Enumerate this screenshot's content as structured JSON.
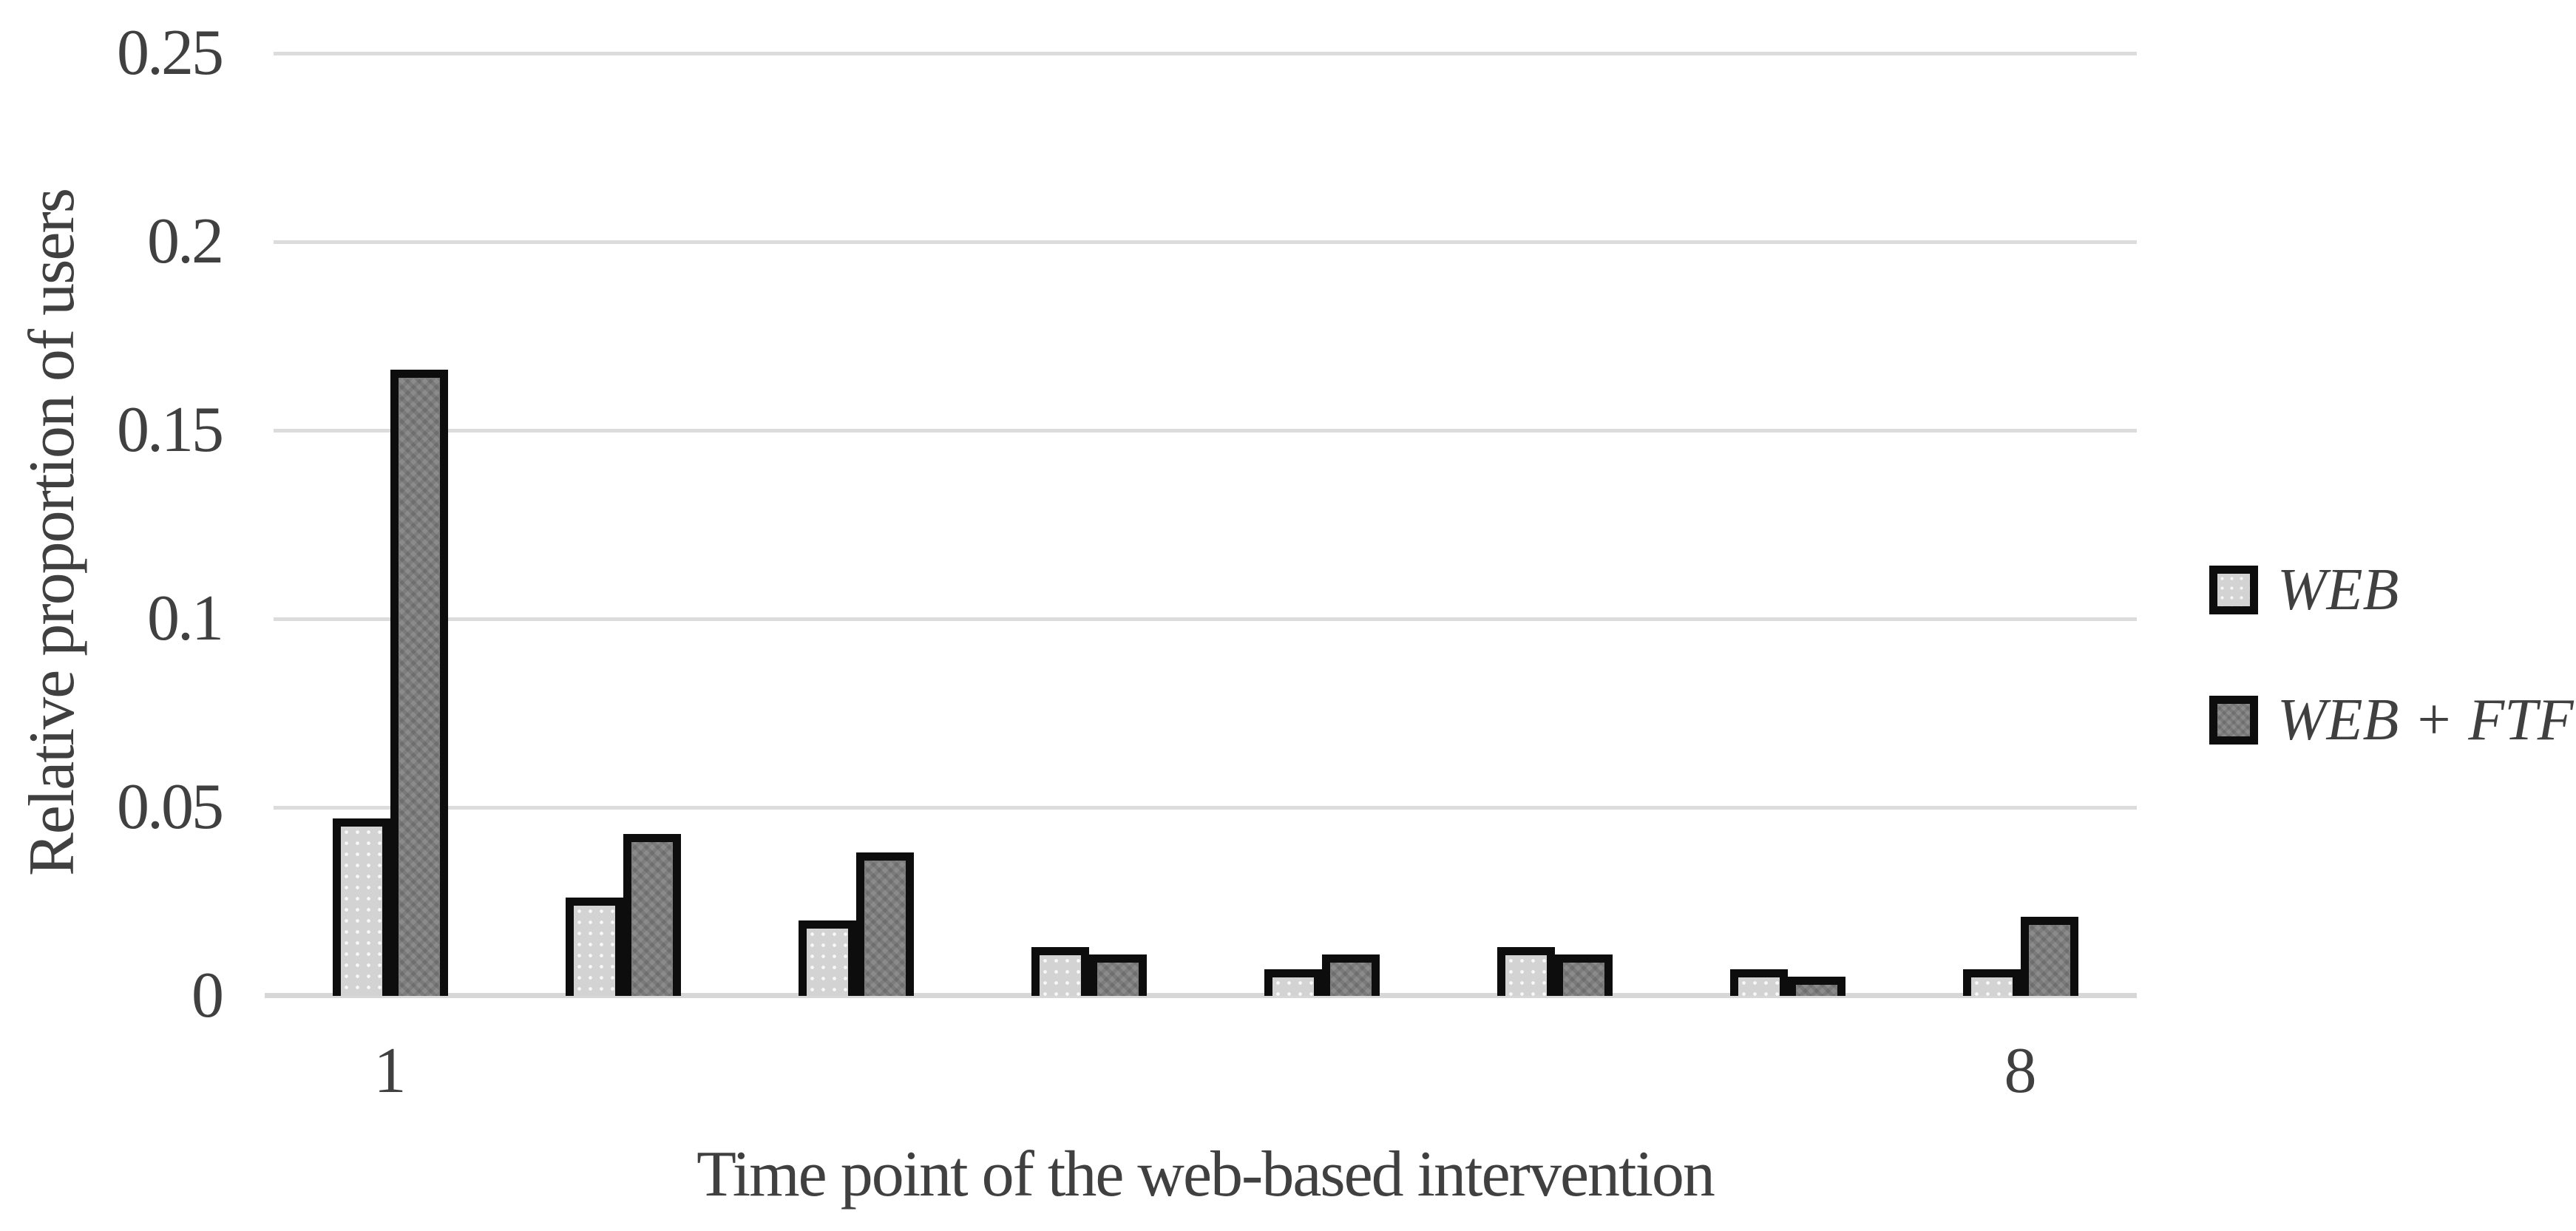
{
  "chart_data": {
    "type": "bar",
    "title": "",
    "xlabel": "Time point of the web-based intervention",
    "ylabel": "Relative proportion of users",
    "categories": [
      "1",
      "2",
      "3",
      "4",
      "5",
      "6",
      "7",
      "8"
    ],
    "x_tick_labels": [
      "1",
      "",
      "",
      "",
      "",
      "",
      "",
      "8"
    ],
    "y_ticks": [
      0,
      0.05,
      0.1,
      0.15,
      0.2,
      0.25
    ],
    "y_tick_labels": [
      "0",
      "0.05",
      "0.1",
      "0.15",
      "0.2",
      "0.25"
    ],
    "ylim": [
      0,
      0.25
    ],
    "grid": true,
    "legend_position": "right",
    "series": [
      {
        "name": "WEB",
        "values": [
          0.047,
          0.026,
          0.02,
          0.013,
          0.007,
          0.013,
          0.007,
          0.007
        ]
      },
      {
        "name": "WEB + FTF",
        "values": [
          0.166,
          0.043,
          0.038,
          0.011,
          0.011,
          0.011,
          0.005,
          0.021
        ]
      }
    ]
  },
  "legend": {
    "items": [
      {
        "label": "WEB"
      },
      {
        "label": "WEB + FTF"
      }
    ]
  },
  "colors": {
    "web_fill": "#d3d3d3",
    "web_ftf_fill": "#8b8b8b",
    "bar_border": "#0d0d0d",
    "gridline": "#dcdcdc",
    "axis_line": "#d7d7d7",
    "text": "#404040",
    "background": "#ffffff"
  }
}
